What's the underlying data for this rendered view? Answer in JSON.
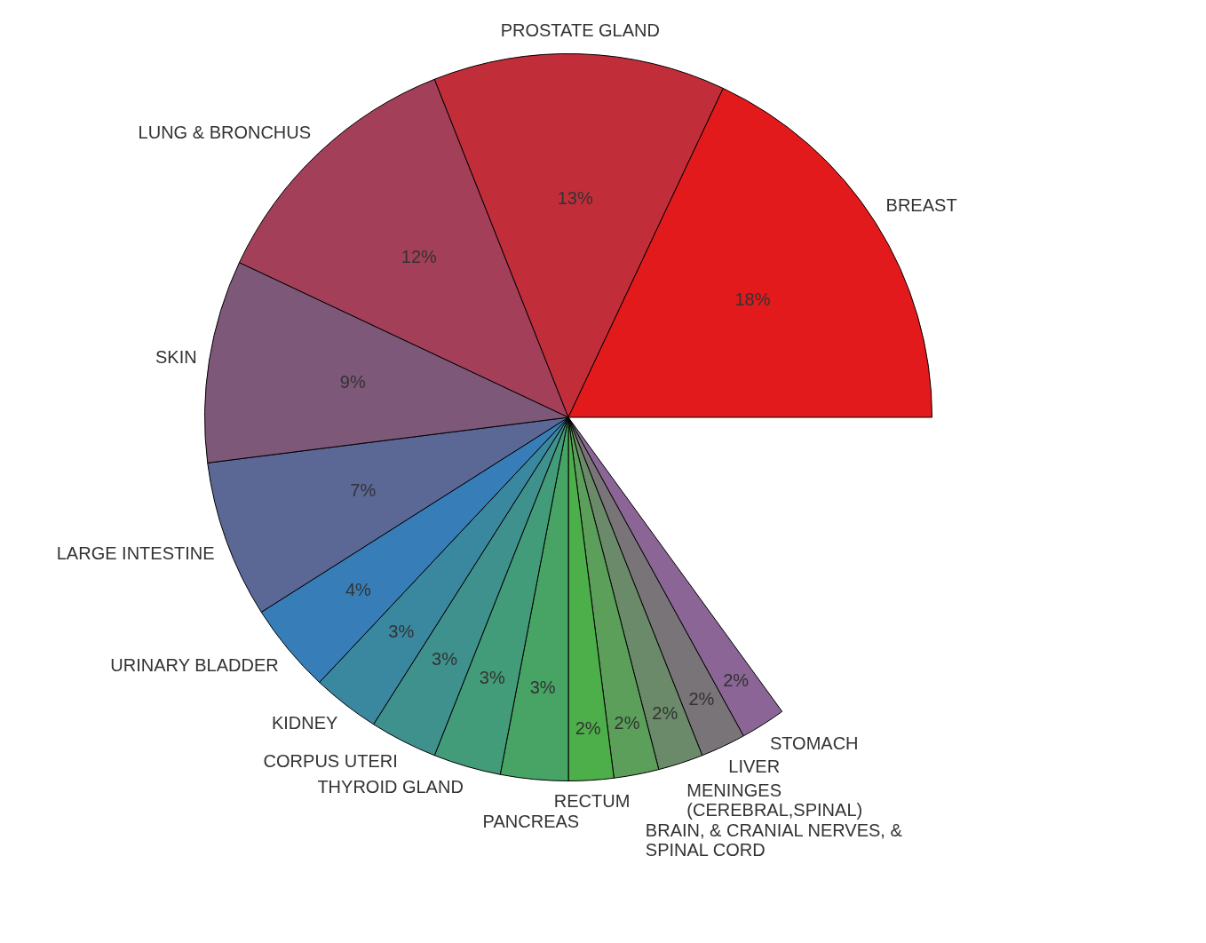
{
  "chart_data": {
    "type": "pie",
    "categories": [
      "BREAST",
      "PROSTATE GLAND",
      "LUNG & BRONCHUS",
      "SKIN",
      "LARGE INTESTINE",
      "URINARY BLADDER",
      "KIDNEY",
      "CORPUS UTERI",
      "THYROID GLAND",
      "PANCREAS",
      "RECTUM",
      "BRAIN, & CRANIAL NERVES, & SPINAL CORD",
      "MENINGES (CEREBRAL,SPINAL)",
      "LIVER",
      "STOMACH"
    ],
    "values": [
      18,
      13,
      12,
      9,
      7,
      4,
      3,
      3,
      3,
      3,
      2,
      2,
      2,
      2,
      2
    ],
    "value_labels": [
      "18%",
      "13%",
      "12%",
      "9%",
      "7%",
      "4%",
      "3%",
      "3%",
      "3%",
      "3%",
      "2%",
      "2%",
      "2%",
      "2%",
      "2%"
    ],
    "colors": [
      "#e31a1c",
      "#c22d3a",
      "#a33f58",
      "#7d5878",
      "#5b6896",
      "#377eb8",
      "#3a87a0",
      "#3e918d",
      "#439c79",
      "#47a465",
      "#4daf4a",
      "#5b9f5a",
      "#6a8a6a",
      "#787478",
      "#8a6596"
    ],
    "legend": false
  }
}
